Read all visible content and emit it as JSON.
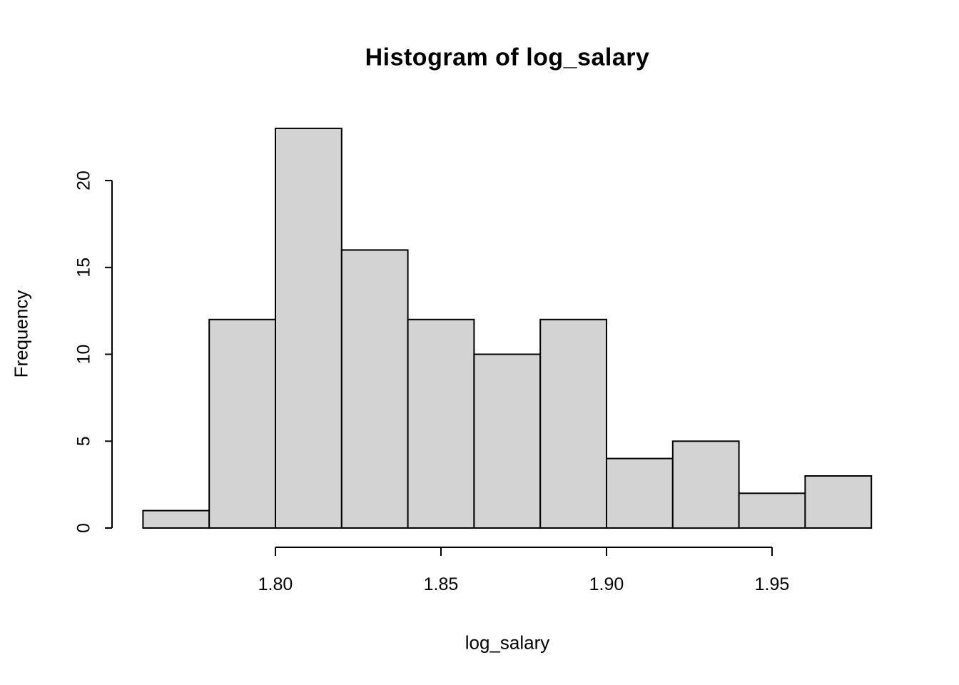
{
  "figure": {
    "background": "#ffffff"
  },
  "chart_data": {
    "type": "bar",
    "subtype": "histogram",
    "title": "Histogram of log_salary",
    "xlabel": "log_salary",
    "ylabel": "Frequency",
    "bin_edges": [
      1.76,
      1.78,
      1.8,
      1.82,
      1.84,
      1.86,
      1.88,
      1.9,
      1.92,
      1.94,
      1.96,
      1.98
    ],
    "counts": [
      1,
      12,
      23,
      16,
      12,
      10,
      12,
      4,
      5,
      2,
      3
    ],
    "x_ticks": [
      {
        "value": 1.8,
        "label": "1.80"
      },
      {
        "value": 1.85,
        "label": "1.85"
      },
      {
        "value": 1.9,
        "label": "1.90"
      },
      {
        "value": 1.95,
        "label": "1.95"
      }
    ],
    "y_ticks": [
      {
        "value": 0,
        "label": "0"
      },
      {
        "value": 5,
        "label": "5"
      },
      {
        "value": 10,
        "label": "10"
      },
      {
        "value": 15,
        "label": "15"
      },
      {
        "value": 20,
        "label": "20"
      }
    ],
    "ylim": [
      0,
      23
    ],
    "xlim": [
      1.76,
      1.98
    ],
    "grid": false,
    "legend": "none",
    "colors": {
      "bar_fill": "#d3d3d3",
      "bar_stroke": "#000000",
      "axis": "#000000",
      "text": "#000000",
      "background": "#ffffff"
    }
  }
}
